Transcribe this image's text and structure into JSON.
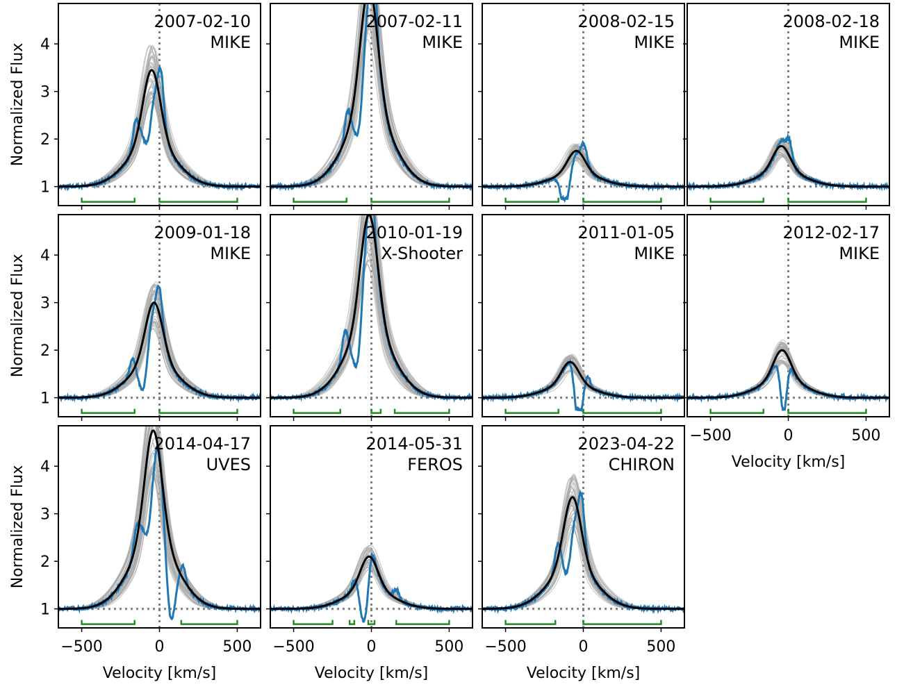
{
  "figure": {
    "y_axis_label": "Normalized Flux",
    "x_axis_label": "Velocity [km/s]",
    "x_tick_labels": [
      "−500",
      "0",
      "500"
    ],
    "y_tick_labels": [
      "1",
      "2",
      "3",
      "4"
    ]
  },
  "colors": {
    "observed": "#1f77b4",
    "model_best": "#000000",
    "model_samples": "#a8a8a8",
    "fit_windows": "#228b22",
    "reference_lines": "#808080"
  },
  "chart_data": [
    {
      "type": "line",
      "date": "2007-02-10",
      "instrument": "MIKE",
      "xlim": [
        -650,
        650
      ],
      "ylim": [
        0.6,
        4.85
      ],
      "model_peak": {
        "v": -50,
        "flux": 3.45
      },
      "observed_peaks": [
        {
          "v": -155,
          "flux": 2.35
        },
        {
          "v": 10,
          "flux": 3.45
        }
      ],
      "observed_absorption": [
        {
          "v": -75,
          "depth": 1.2
        }
      ],
      "fit_windows": [
        [
          -500,
          -160
        ],
        [
          0,
          500
        ]
      ]
    },
    {
      "type": "line",
      "date": "2007-02-11",
      "instrument": "MIKE",
      "xlim": [
        -650,
        650
      ],
      "ylim": [
        0.6,
        4.85
      ],
      "model_peak": {
        "v": -15,
        "flux": 5.2
      },
      "observed_peaks": [
        {
          "v": -155,
          "flux": 2.5
        },
        {
          "v": 15,
          "flux": 4.3
        }
      ],
      "observed_absorption": [
        {
          "v": -75,
          "depth": 1.4
        }
      ],
      "fit_windows": [
        [
          -500,
          -160
        ],
        [
          0,
          500
        ]
      ]
    },
    {
      "type": "line",
      "date": "2008-02-15",
      "instrument": "MIKE",
      "xlim": [
        -650,
        650
      ],
      "ylim": [
        0.6,
        4.85
      ],
      "model_peak": {
        "v": -45,
        "flux": 1.75
      },
      "observed_peaks": [
        {
          "v": 5,
          "flux": 2.0
        }
      ],
      "observed_absorption": [
        {
          "v": -115,
          "depth": 0.85
        }
      ],
      "fit_windows": [
        [
          -500,
          -160
        ],
        [
          0,
          500
        ]
      ]
    },
    {
      "type": "line",
      "date": "2008-02-18",
      "instrument": "MIKE",
      "xlim": [
        -650,
        650
      ],
      "ylim": [
        0.6,
        4.85
      ],
      "model_peak": {
        "v": -45,
        "flux": 1.85
      },
      "observed_peaks": [
        {
          "v": -45,
          "flux": 1.45
        },
        {
          "v": 5,
          "flux": 2.1
        }
      ],
      "observed_absorption": [],
      "fit_windows": [
        [
          -500,
          -160
        ],
        [
          0,
          500
        ]
      ]
    },
    {
      "type": "line",
      "date": "2009-01-18",
      "instrument": "MIKE",
      "xlim": [
        -650,
        650
      ],
      "ylim": [
        0.6,
        4.85
      ],
      "model_peak": {
        "v": -35,
        "flux": 3.0
      },
      "observed_peaks": [
        {
          "v": -175,
          "flux": 1.9
        },
        {
          "v": 0,
          "flux": 2.9
        }
      ],
      "observed_absorption": [
        {
          "v": -100,
          "depth": 1.0
        }
      ],
      "fit_windows": [
        [
          -500,
          -160
        ],
        [
          0,
          500
        ]
      ]
    },
    {
      "type": "line",
      "date": "2010-01-19",
      "instrument": "X-Shooter",
      "xlim": [
        -650,
        650
      ],
      "ylim": [
        0.6,
        4.85
      ],
      "model_peak": {
        "v": -15,
        "flux": 4.85
      },
      "observed_peaks": [
        {
          "v": -170,
          "flux": 2.6
        },
        {
          "v": 0,
          "flux": 4.1
        }
      ],
      "observed_absorption": [
        {
          "v": -85,
          "depth": 1.4
        }
      ],
      "fit_windows": [
        [
          -500,
          -200
        ],
        [
          0,
          60
        ],
        [
          150,
          500
        ]
      ]
    },
    {
      "type": "line",
      "date": "2011-01-05",
      "instrument": "MIKE",
      "xlim": [
        -650,
        650
      ],
      "ylim": [
        0.6,
        4.85
      ],
      "model_peak": {
        "v": -85,
        "flux": 1.75
      },
      "observed_peaks": [
        {
          "v": -75,
          "flux": 1.7
        },
        {
          "v": 25,
          "flux": 1.75
        }
      ],
      "observed_absorption": [
        {
          "v": -35,
          "depth": 1.0
        }
      ],
      "fit_windows": [
        [
          -500,
          -160
        ],
        [
          0,
          500
        ]
      ]
    },
    {
      "type": "line",
      "date": "2012-02-17",
      "instrument": "MIKE",
      "xlim": [
        -650,
        650
      ],
      "ylim": [
        0.6,
        4.85
      ],
      "model_peak": {
        "v": -40,
        "flux": 2.0
      },
      "observed_peaks": [
        {
          "v": -60,
          "flux": 1.85
        },
        {
          "v": 0,
          "flux": 2.1
        }
      ],
      "observed_absorption": [
        {
          "v": -30,
          "depth": 1.4
        }
      ],
      "fit_windows": [
        [
          -500,
          -160
        ],
        [
          0,
          500
        ]
      ]
    },
    {
      "type": "line",
      "date": "2014-04-17",
      "instrument": "UVES",
      "xlim": [
        -650,
        650
      ],
      "ylim": [
        0.6,
        4.85
      ],
      "model_peak": {
        "v": -40,
        "flux": 4.75
      },
      "observed_peaks": [
        {
          "v": -150,
          "flux": 2.2
        },
        {
          "v": 0,
          "flux": 2.25
        },
        {
          "v": 150,
          "flux": 1.9
        }
      ],
      "observed_absorption": [
        {
          "v": -70,
          "depth": 1.5
        },
        {
          "v": 70,
          "depth": 1.5
        }
      ],
      "fit_windows": [
        [
          -500,
          -160
        ],
        [
          140,
          500
        ]
      ]
    },
    {
      "type": "line",
      "date": "2014-05-31",
      "instrument": "FEROS",
      "xlim": [
        -650,
        650
      ],
      "ylim": [
        0.6,
        4.85
      ],
      "model_peak": {
        "v": -15,
        "flux": 2.1
      },
      "observed_peaks": [
        {
          "v": -105,
          "flux": 1.65
        },
        {
          "v": 0,
          "flux": 2.05
        },
        {
          "v": 160,
          "flux": 1.6
        }
      ],
      "observed_absorption": [
        {
          "v": -45,
          "depth": 1.2
        }
      ],
      "fit_windows": [
        [
          -500,
          -250
        ],
        [
          -140,
          -110
        ],
        [
          -20,
          20
        ],
        [
          160,
          500
        ]
      ]
    },
    {
      "type": "line",
      "date": "2023-04-22",
      "instrument": "CHIRON",
      "xlim": [
        -650,
        650
      ],
      "ylim": [
        0.6,
        4.85
      ],
      "model_peak": {
        "v": -70,
        "flux": 3.35
      },
      "observed_peaks": [
        {
          "v": -165,
          "flux": 2.3
        },
        {
          "v": -10,
          "flux": 3.4
        }
      ],
      "observed_absorption": [
        {
          "v": -100,
          "depth": 1.2
        }
      ],
      "fit_windows": [
        [
          -500,
          -180
        ],
        [
          0,
          500
        ]
      ]
    }
  ]
}
